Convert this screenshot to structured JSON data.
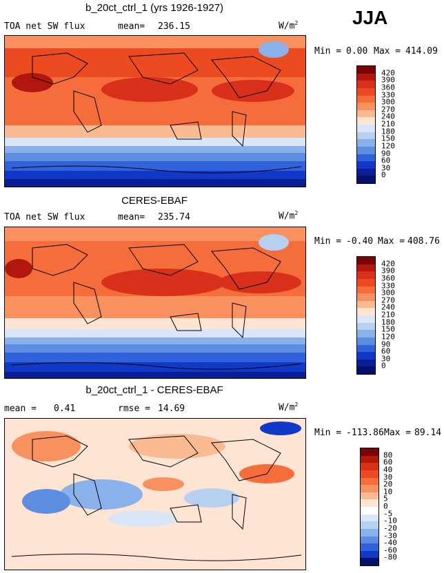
{
  "season": "JJA",
  "units_base": "W/m",
  "units_exp": "2",
  "panels": [
    {
      "title": "b_20ct_ctrl_1 (yrs 1926-1927)",
      "left_label": "TOA net SW flux",
      "stat1_label": "mean=",
      "stat1_value": "236.15",
      "stat2_label": "",
      "stat2_value": "",
      "min_label": "Min =",
      "min_value": "0.00",
      "max_label": "Max =",
      "max_value": "414.09",
      "levels": [
        "420",
        "390",
        "360",
        "330",
        "300",
        "270",
        "240",
        "210",
        "180",
        "150",
        "120",
        "90",
        "60",
        "30",
        "0"
      ],
      "colors": [
        "#7a0403",
        "#b2170f",
        "#d8301a",
        "#ec4b22",
        "#f46d3a",
        "#f8915f",
        "#fbbb92",
        "#fde4d3",
        "#d8e6f8",
        "#b7d0f2",
        "#8bb1ea",
        "#5d8de0",
        "#2f62db",
        "#1139c7",
        "#0a1f95",
        "#04106b"
      ]
    },
    {
      "title": "CERES-EBAF",
      "left_label": "TOA net SW flux",
      "stat1_label": "mean=",
      "stat1_value": "235.74",
      "stat2_label": "",
      "stat2_value": "",
      "min_label": "Min =",
      "min_value": "-0.40",
      "max_label": "Max =",
      "max_value": "408.76",
      "levels": [
        "420",
        "390",
        "360",
        "330",
        "300",
        "270",
        "240",
        "210",
        "180",
        "150",
        "120",
        "90",
        "60",
        "30",
        "0"
      ],
      "colors": [
        "#7a0403",
        "#b2170f",
        "#d8301a",
        "#ec4b22",
        "#f46d3a",
        "#f8915f",
        "#fbbb92",
        "#fde4d3",
        "#d8e6f8",
        "#b7d0f2",
        "#8bb1ea",
        "#5d8de0",
        "#2f62db",
        "#1139c7",
        "#0a1f95",
        "#04106b"
      ]
    },
    {
      "title": "b_20ct_ctrl_1 - CERES-EBAF",
      "left_label": "mean =",
      "stat1_label": "",
      "stat1_value": "0.41",
      "stat2_label": "rmse =",
      "stat2_value": "14.69",
      "min_label": "Min =",
      "min_value": "-113.86",
      "max_label": "Max =",
      "max_value": "89.14",
      "levels": [
        "80",
        "60",
        "40",
        "30",
        "20",
        "10",
        "5",
        "0",
        "-5",
        "-10",
        "-20",
        "-30",
        "-40",
        "-60",
        "-80"
      ],
      "colors": [
        "#7a0403",
        "#b2170f",
        "#d8301a",
        "#ec4b22",
        "#f46d3a",
        "#f8915f",
        "#fbbb92",
        "#fde4d3",
        "#ffffff",
        "#d8e6f8",
        "#b7d0f2",
        "#8bb1ea",
        "#5d8de0",
        "#2f62db",
        "#1139c7",
        "#04106b"
      ]
    }
  ]
}
